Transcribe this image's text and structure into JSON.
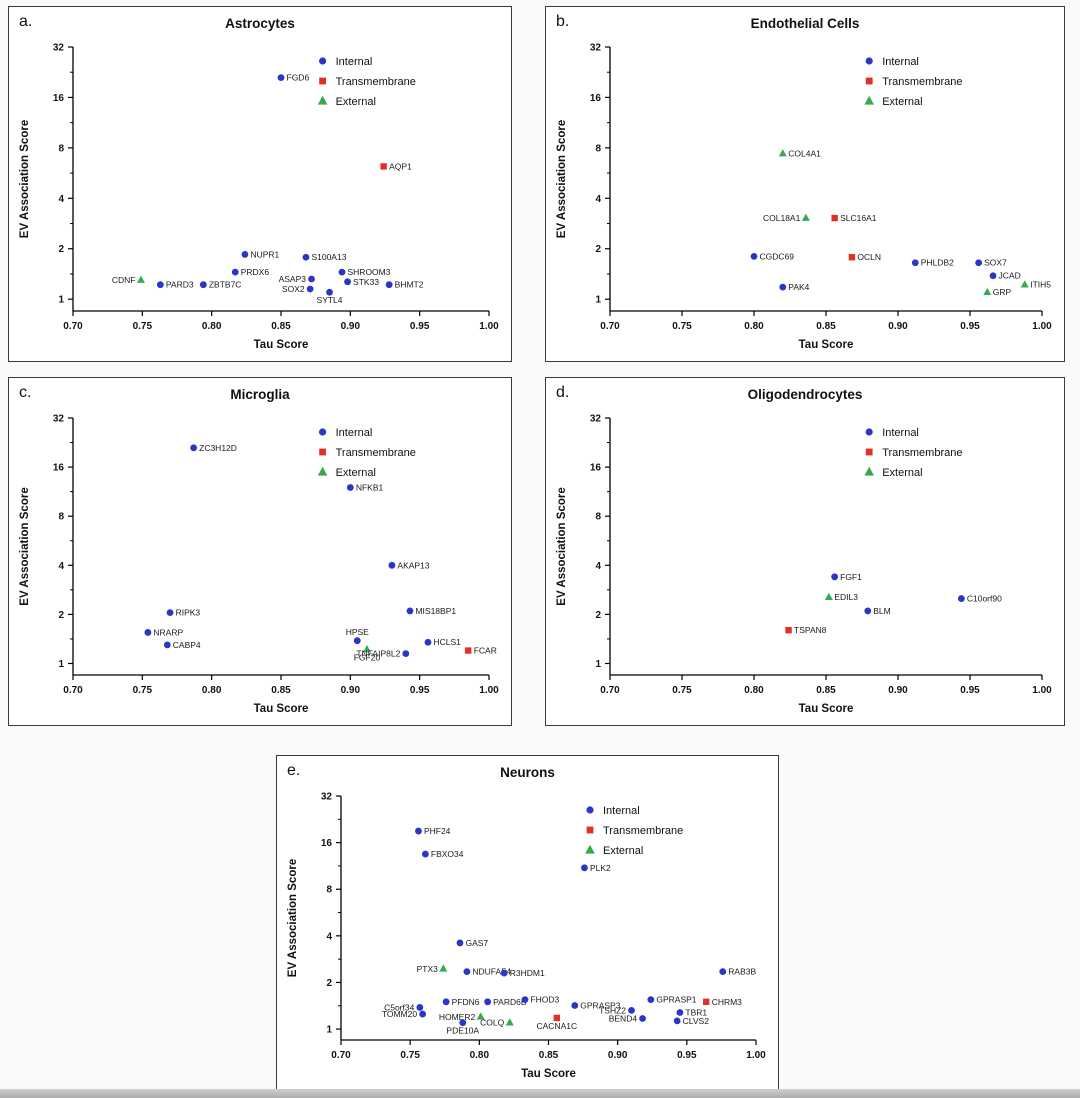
{
  "page": {
    "background": "#fafaf9"
  },
  "colors": {
    "Internal": "#2b36c7",
    "Transmembrane": "#e03127",
    "External": "#3aa94c"
  },
  "legend": [
    "Internal",
    "Transmembrane",
    "External"
  ],
  "chart_data": [
    {
      "type": "scatter",
      "panel": "a.",
      "title": "Astrocytes",
      "xlabel": "Tau Score",
      "ylabel": "EV Association Score",
      "xlim": [
        0.7,
        1.0
      ],
      "ylim": [
        0.85,
        32
      ],
      "yscale": "log2",
      "xticks": [
        "0.70",
        "0.75",
        "0.80",
        "0.85",
        "0.90",
        "0.95",
        "1.00"
      ],
      "yticks": [
        1,
        2,
        4,
        8,
        16,
        32
      ],
      "legend_pos": "top-right",
      "points": [
        {
          "g": "FGD6",
          "x": 0.85,
          "y": 21,
          "t": "Internal",
          "lp": "r"
        },
        {
          "g": "AQP1",
          "x": 0.924,
          "y": 6.2,
          "t": "Transmembrane",
          "lp": "r"
        },
        {
          "g": "NUPR1",
          "x": 0.824,
          "y": 1.85,
          "t": "Internal",
          "lp": "r"
        },
        {
          "g": "S100A13",
          "x": 0.868,
          "y": 1.78,
          "t": "Internal",
          "lp": "r"
        },
        {
          "g": "PRDX6",
          "x": 0.817,
          "y": 1.45,
          "t": "Internal",
          "lp": "r"
        },
        {
          "g": "SHROOM3",
          "x": 0.894,
          "y": 1.45,
          "t": "Internal",
          "lp": "r"
        },
        {
          "g": "ASAP3",
          "x": 0.872,
          "y": 1.32,
          "t": "Internal",
          "lp": "l"
        },
        {
          "g": "STK33",
          "x": 0.898,
          "y": 1.27,
          "t": "Internal",
          "lp": "r"
        },
        {
          "g": "BHMT2",
          "x": 0.928,
          "y": 1.22,
          "t": "Internal",
          "lp": "r"
        },
        {
          "g": "SOX2",
          "x": 0.871,
          "y": 1.15,
          "t": "Internal",
          "lp": "l"
        },
        {
          "g": "SYTL4",
          "x": 0.885,
          "y": 1.1,
          "t": "Internal",
          "lp": "b"
        },
        {
          "g": "ZBTB7C",
          "x": 0.794,
          "y": 1.22,
          "t": "Internal",
          "lp": "r"
        },
        {
          "g": "PARD3",
          "x": 0.763,
          "y": 1.22,
          "t": "Internal",
          "lp": "r"
        },
        {
          "g": "CDNF",
          "x": 0.749,
          "y": 1.3,
          "t": "External",
          "lp": "l"
        }
      ]
    },
    {
      "type": "scatter",
      "panel": "b.",
      "title": "Endothelial Cells",
      "xlabel": "Tau Score",
      "ylabel": "EV Association Score",
      "xlim": [
        0.7,
        1.0
      ],
      "ylim": [
        0.85,
        32
      ],
      "yscale": "log2",
      "xticks": [
        "0.70",
        "0.75",
        "0.80",
        "0.85",
        "0.90",
        "0.95",
        "1.00"
      ],
      "yticks": [
        1,
        2,
        4,
        8,
        16,
        32
      ],
      "legend_pos": "top-right",
      "points": [
        {
          "g": "COL4A1",
          "x": 0.82,
          "y": 7.4,
          "t": "External",
          "lp": "r"
        },
        {
          "g": "COL18A1",
          "x": 0.836,
          "y": 3.05,
          "t": "External",
          "lp": "l"
        },
        {
          "g": "SLC16A1",
          "x": 0.856,
          "y": 3.05,
          "t": "Transmembrane",
          "lp": "r"
        },
        {
          "g": "CGDC69",
          "x": 0.8,
          "y": 1.8,
          "t": "Internal",
          "lp": "r"
        },
        {
          "g": "OCLN",
          "x": 0.868,
          "y": 1.78,
          "t": "Transmembrane",
          "lp": "r"
        },
        {
          "g": "PHLDB2",
          "x": 0.912,
          "y": 1.65,
          "t": "Internal",
          "lp": "r"
        },
        {
          "g": "SOX7",
          "x": 0.956,
          "y": 1.65,
          "t": "Internal",
          "lp": "r"
        },
        {
          "g": "JCAD",
          "x": 0.966,
          "y": 1.38,
          "t": "Internal",
          "lp": "r"
        },
        {
          "g": "ITIH5",
          "x": 0.988,
          "y": 1.22,
          "t": "External",
          "lp": "r"
        },
        {
          "g": "GRP",
          "x": 0.962,
          "y": 1.1,
          "t": "External",
          "lp": "r"
        },
        {
          "g": "PAK4",
          "x": 0.82,
          "y": 1.18,
          "t": "Internal",
          "lp": "r"
        }
      ]
    },
    {
      "type": "scatter",
      "panel": "c.",
      "title": "Microglia",
      "xlabel": "Tau Score",
      "ylabel": "EV Association Score",
      "xlim": [
        0.7,
        1.0
      ],
      "ylim": [
        0.85,
        32
      ],
      "yscale": "log2",
      "xticks": [
        "0.70",
        "0.75",
        "0.80",
        "0.85",
        "0.90",
        "0.95",
        "1.00"
      ],
      "yticks": [
        1,
        2,
        4,
        8,
        16,
        32
      ],
      "legend_pos": "top-right",
      "points": [
        {
          "g": "ZC3H12D",
          "x": 0.787,
          "y": 21,
          "t": "Internal",
          "lp": "r"
        },
        {
          "g": "NFKB1",
          "x": 0.9,
          "y": 12,
          "t": "Internal",
          "lp": "r"
        },
        {
          "g": "AKAP13",
          "x": 0.93,
          "y": 4.0,
          "t": "Internal",
          "lp": "r"
        },
        {
          "g": "MIS18BP1",
          "x": 0.943,
          "y": 2.1,
          "t": "Internal",
          "lp": "r"
        },
        {
          "g": "RIPK3",
          "x": 0.77,
          "y": 2.05,
          "t": "Internal",
          "lp": "r"
        },
        {
          "g": "NRARP",
          "x": 0.754,
          "y": 1.55,
          "t": "Internal",
          "lp": "r"
        },
        {
          "g": "CABP4",
          "x": 0.768,
          "y": 1.3,
          "t": "Internal",
          "lp": "r"
        },
        {
          "g": "HPSE",
          "x": 0.905,
          "y": 1.38,
          "t": "Internal",
          "lp": "t"
        },
        {
          "g": "FGF20",
          "x": 0.912,
          "y": 1.22,
          "t": "External",
          "lp": "b"
        },
        {
          "g": "TNFAIP8L2",
          "x": 0.94,
          "y": 1.15,
          "t": "Internal",
          "lp": "l"
        },
        {
          "g": "HCLS1",
          "x": 0.956,
          "y": 1.35,
          "t": "Internal",
          "lp": "r"
        },
        {
          "g": "FCAR",
          "x": 0.985,
          "y": 1.2,
          "t": "Transmembrane",
          "lp": "r"
        }
      ]
    },
    {
      "type": "scatter",
      "panel": "d.",
      "title": "Oligodendrocytes",
      "xlabel": "Tau Score",
      "ylabel": "EV Association Score",
      "xlim": [
        0.7,
        1.0
      ],
      "ylim": [
        0.85,
        32
      ],
      "yscale": "log2",
      "xticks": [
        "0.70",
        "0.75",
        "0.80",
        "0.85",
        "0.90",
        "0.95",
        "1.00"
      ],
      "yticks": [
        1,
        2,
        4,
        8,
        16,
        32
      ],
      "legend_pos": "top-right",
      "points": [
        {
          "g": "FGF1",
          "x": 0.856,
          "y": 3.4,
          "t": "Internal",
          "lp": "r"
        },
        {
          "g": "EDIL3",
          "x": 0.852,
          "y": 2.55,
          "t": "External",
          "lp": "r"
        },
        {
          "g": "BLM",
          "x": 0.879,
          "y": 2.1,
          "t": "Internal",
          "lp": "r"
        },
        {
          "g": "C10orf90",
          "x": 0.944,
          "y": 2.5,
          "t": "Internal",
          "lp": "r"
        },
        {
          "g": "TSPAN8",
          "x": 0.824,
          "y": 1.6,
          "t": "Transmembrane",
          "lp": "r"
        }
      ]
    },
    {
      "type": "scatter",
      "panel": "e.",
      "title": "Neurons",
      "xlabel": "Tau Score",
      "ylabel": "EV Association Score",
      "xlim": [
        0.7,
        1.0
      ],
      "ylim": [
        0.85,
        32
      ],
      "yscale": "log2",
      "xticks": [
        "0.70",
        "0.75",
        "0.80",
        "0.85",
        "0.90",
        "0.95",
        "1.00"
      ],
      "yticks": [
        1,
        2,
        4,
        8,
        16,
        32
      ],
      "legend_pos": "top-right",
      "points": [
        {
          "g": "PHF24",
          "x": 0.756,
          "y": 19,
          "t": "Internal",
          "lp": "r"
        },
        {
          "g": "FBXO34",
          "x": 0.761,
          "y": 13.5,
          "t": "Internal",
          "lp": "r"
        },
        {
          "g": "PLK2",
          "x": 0.876,
          "y": 11,
          "t": "Internal",
          "lp": "r"
        },
        {
          "g": "GAS7",
          "x": 0.786,
          "y": 3.6,
          "t": "Internal",
          "lp": "r"
        },
        {
          "g": "PTX3",
          "x": 0.774,
          "y": 2.45,
          "t": "External",
          "lp": "l"
        },
        {
          "g": "NDUFAF4",
          "x": 0.791,
          "y": 2.35,
          "t": "Internal",
          "lp": "r"
        },
        {
          "g": "R3HDM1",
          "x": 0.818,
          "y": 2.3,
          "t": "Internal",
          "lp": "r"
        },
        {
          "g": "PFDN6",
          "x": 0.776,
          "y": 1.5,
          "t": "Internal",
          "lp": "r"
        },
        {
          "g": "C5orf34",
          "x": 0.757,
          "y": 1.38,
          "t": "Internal",
          "lp": "l"
        },
        {
          "g": "TOMM20",
          "x": 0.759,
          "y": 1.25,
          "t": "Internal",
          "lp": "l"
        },
        {
          "g": "PDE10A",
          "x": 0.788,
          "y": 1.1,
          "t": "Internal",
          "lp": "b"
        },
        {
          "g": "HOMER2",
          "x": 0.801,
          "y": 1.2,
          "t": "External",
          "lp": "l"
        },
        {
          "g": "PARD6B",
          "x": 0.806,
          "y": 1.5,
          "t": "Internal",
          "lp": "r"
        },
        {
          "g": "COLQ",
          "x": 0.822,
          "y": 1.1,
          "t": "External",
          "lp": "l"
        },
        {
          "g": "FHOD3",
          "x": 0.833,
          "y": 1.55,
          "t": "Internal",
          "lp": "r"
        },
        {
          "g": "CACNA1C",
          "x": 0.856,
          "y": 1.18,
          "t": "Transmembrane",
          "lp": "b"
        },
        {
          "g": "GPRASP3",
          "x": 0.869,
          "y": 1.42,
          "t": "Internal",
          "lp": "r"
        },
        {
          "g": "TSHZ2",
          "x": 0.91,
          "y": 1.32,
          "t": "Internal",
          "lp": "l"
        },
        {
          "g": "GPRASP1",
          "x": 0.924,
          "y": 1.55,
          "t": "Internal",
          "lp": "r"
        },
        {
          "g": "BEND4",
          "x": 0.918,
          "y": 1.17,
          "t": "Internal",
          "lp": "l"
        },
        {
          "g": "TBR1",
          "x": 0.945,
          "y": 1.28,
          "t": "Internal",
          "lp": "r"
        },
        {
          "g": "CLVS2",
          "x": 0.943,
          "y": 1.13,
          "t": "Internal",
          "lp": "r"
        },
        {
          "g": "CHRM3",
          "x": 0.964,
          "y": 1.5,
          "t": "Transmembrane",
          "lp": "r"
        },
        {
          "g": "RAB3B",
          "x": 0.976,
          "y": 2.35,
          "t": "Internal",
          "lp": "r"
        }
      ]
    }
  ]
}
